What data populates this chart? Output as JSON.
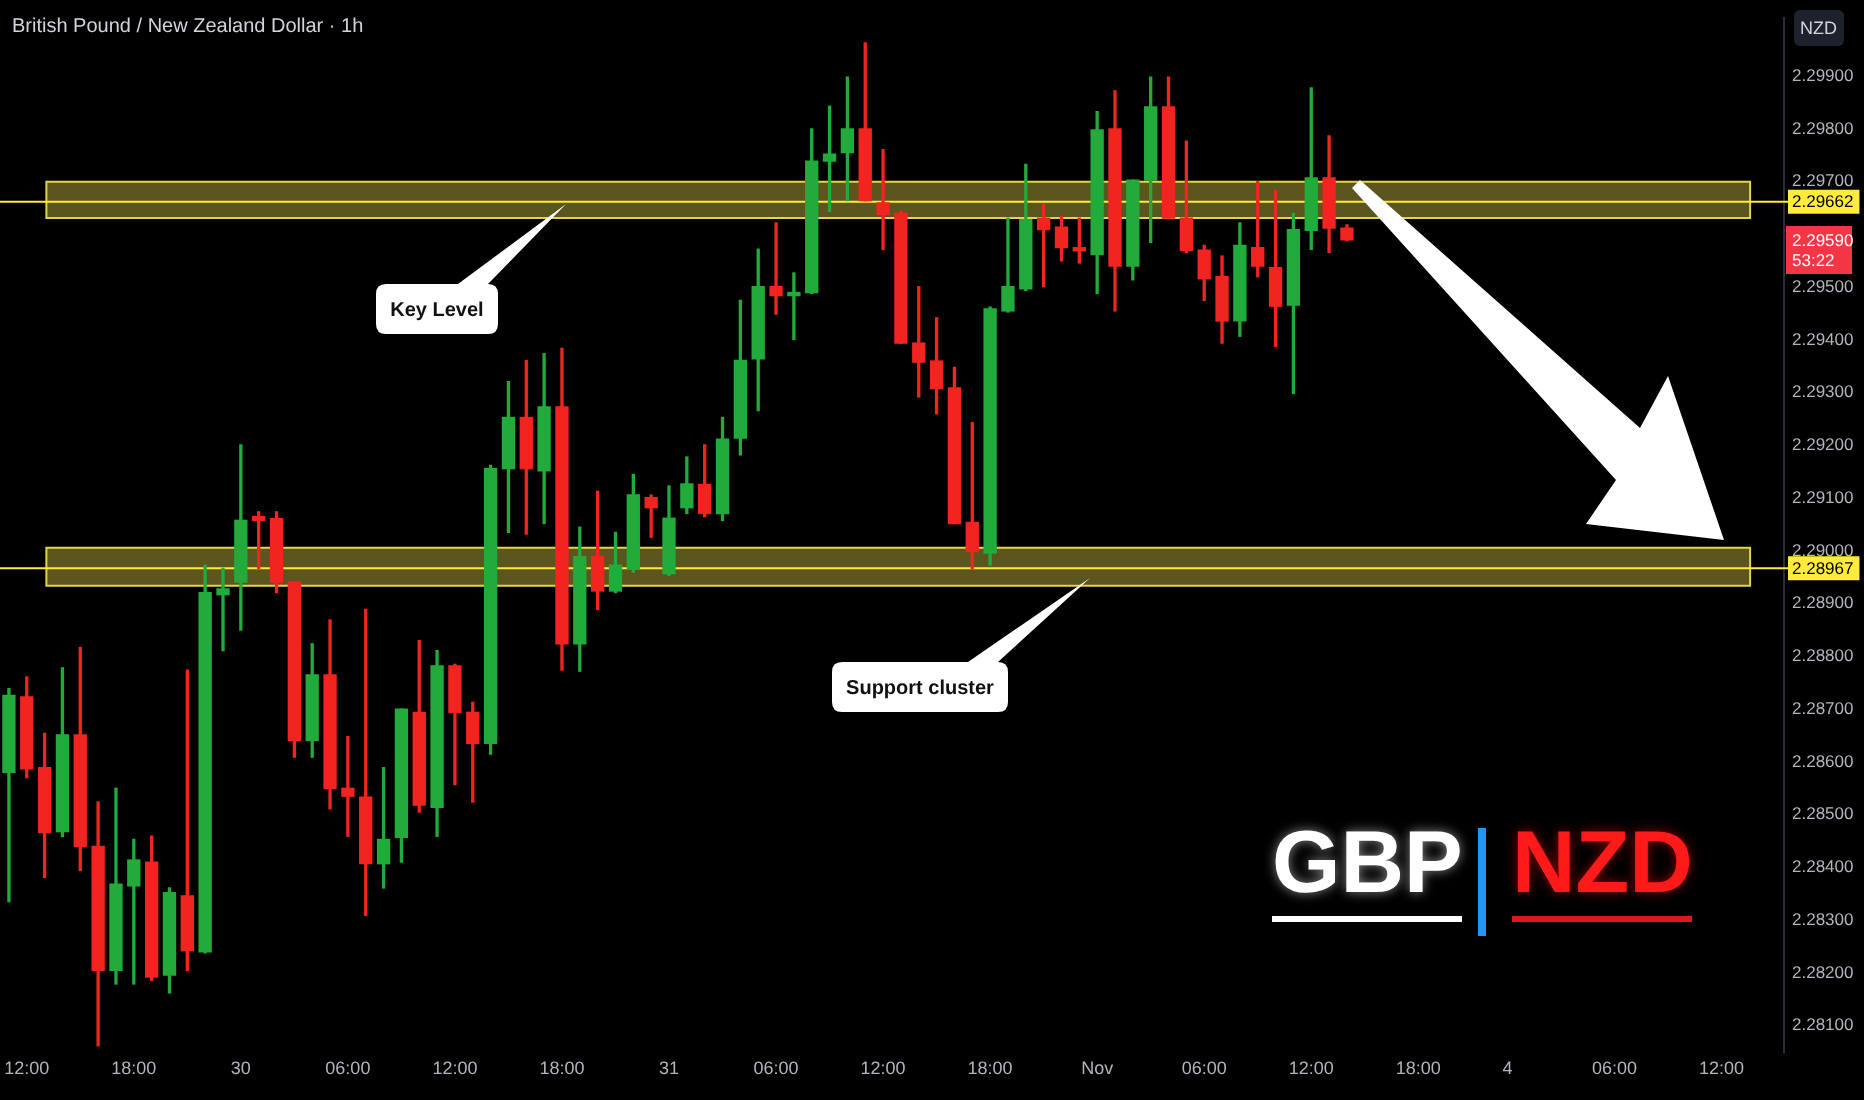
{
  "chart_data": {
    "type": "candlestick",
    "title": "British Pound / New Zealand Dollar · 1h",
    "categories": [
      null,
      "12:00",
      null,
      null,
      null,
      null,
      null,
      "18:00",
      null,
      null,
      null,
      null,
      null,
      "30",
      null,
      null,
      null,
      null,
      null,
      "06:00",
      null,
      null,
      null,
      null,
      null,
      "12:00",
      null,
      null,
      null,
      null,
      null,
      "18:00",
      null,
      null,
      null,
      null,
      null,
      "31",
      null,
      null,
      null,
      null,
      null,
      "06:00",
      null,
      null,
      null,
      null,
      null,
      "12:00",
      null,
      null,
      null,
      null,
      null,
      "18:00",
      null,
      null,
      null,
      null,
      null,
      "Nov",
      null,
      null,
      null,
      null,
      null,
      "06:00",
      null,
      null,
      null,
      null,
      null,
      "12:00",
      null,
      null,
      null,
      null,
      null,
      "18:00",
      null,
      null,
      null,
      null,
      "4",
      null,
      null,
      null,
      null,
      null,
      "06:00",
      null,
      null,
      null,
      null,
      null,
      "12:00",
      null,
      null,
      null
    ],
    "ohlc": [
      [
        2.2858,
        2.28739,
        2.28335,
        2.28726
      ],
      [
        2.28723,
        2.28761,
        2.2857,
        2.28587
      ],
      [
        2.28589,
        2.28654,
        2.28381,
        2.28466
      ],
      [
        2.28468,
        2.28778,
        2.28459,
        2.28651
      ],
      [
        2.28651,
        2.28817,
        2.28394,
        2.2844
      ],
      [
        2.2844,
        2.28524,
        2.28062,
        2.28205
      ],
      [
        2.28205,
        2.2855,
        2.28179,
        2.28368
      ],
      [
        2.28365,
        2.28453,
        2.28179,
        2.28414
      ],
      [
        2.2841,
        2.28459,
        2.28186,
        2.28192
      ],
      [
        2.28196,
        2.28361,
        2.28162,
        2.28352
      ],
      [
        2.28346,
        2.28774,
        2.28205,
        2.28242
      ],
      [
        2.2824,
        2.28973,
        2.28238,
        2.28921
      ],
      [
        2.28917,
        2.28967,
        2.28811,
        2.28928
      ],
      [
        2.28941,
        2.29201,
        2.2885,
        2.29058
      ],
      [
        2.29065,
        2.29074,
        2.28967,
        2.29058
      ],
      [
        2.29061,
        2.29074,
        2.28921,
        2.28941
      ],
      [
        2.28941,
        2.28941,
        2.28609,
        2.28641
      ],
      [
        2.28641,
        2.28824,
        2.28609,
        2.28765
      ],
      [
        2.28765,
        2.28869,
        2.28511,
        2.2855
      ],
      [
        2.2855,
        2.28648,
        2.28459,
        2.28535
      ],
      [
        2.28533,
        2.28889,
        2.28309,
        2.28407
      ],
      [
        2.28407,
        2.28589,
        2.28361,
        2.28453
      ],
      [
        2.28457,
        2.287,
        2.2841,
        2.287
      ],
      [
        2.28694,
        2.2883,
        2.28505,
        2.28518
      ],
      [
        2.28514,
        2.28811,
        2.28459,
        2.28782
      ],
      [
        2.28782,
        2.28785,
        2.28557,
        2.28694
      ],
      [
        2.28694,
        2.28713,
        2.28524,
        2.28635
      ],
      [
        2.28635,
        2.29162,
        2.28615,
        2.29156
      ],
      [
        2.29156,
        2.29321,
        2.29035,
        2.29253
      ],
      [
        2.29253,
        2.29361,
        2.29032,
        2.29156
      ],
      [
        2.29152,
        2.29374,
        2.29052,
        2.29273
      ],
      [
        2.29273,
        2.29384,
        2.28774,
        2.28824
      ],
      [
        2.28824,
        2.29045,
        2.28772,
        2.28989
      ],
      [
        2.28989,
        2.29113,
        2.28889,
        2.28924
      ],
      [
        2.28924,
        2.29035,
        2.28921,
        2.28973
      ],
      [
        2.28967,
        2.29145,
        2.2896,
        2.29106
      ],
      [
        2.29101,
        2.29106,
        2.29026,
        2.29082
      ],
      [
        2.28957,
        2.29123,
        2.28954,
        2.29062
      ],
      [
        2.29082,
        2.29178,
        2.29071,
        2.29127
      ],
      [
        2.29126,
        2.29201,
        2.29065,
        2.29071
      ],
      [
        2.29071,
        2.29253,
        2.29058,
        2.29212
      ],
      [
        2.29214,
        2.29475,
        2.29182,
        2.29361
      ],
      [
        2.29364,
        2.29572,
        2.29266,
        2.29501
      ],
      [
        2.29501,
        2.29622,
        2.29449,
        2.29484
      ],
      [
        2.29484,
        2.29527,
        2.29401,
        2.2949
      ],
      [
        2.2949,
        2.298,
        2.29488,
        2.29739
      ],
      [
        2.29739,
        2.29843,
        2.29644,
        2.29752
      ],
      [
        2.29755,
        2.29898,
        2.29664,
        2.298
      ],
      [
        2.298,
        2.29963,
        2.29664,
        2.29664
      ],
      [
        2.2966,
        2.29761,
        2.29572,
        2.29638
      ],
      [
        2.2964,
        2.29644,
        2.29394,
        2.29394
      ],
      [
        2.29394,
        2.29501,
        2.29292,
        2.29358
      ],
      [
        2.2936,
        2.29442,
        2.2926,
        2.29308
      ],
      [
        2.29309,
        2.29348,
        2.29052,
        2.29052
      ],
      [
        2.29054,
        2.29243,
        2.28967,
        2.28999
      ],
      [
        2.28996,
        2.29462,
        2.28973,
        2.29459
      ],
      [
        2.29455,
        2.29631,
        2.29453,
        2.29501
      ],
      [
        2.29497,
        2.29733,
        2.29494,
        2.29628
      ],
      [
        2.29631,
        2.29657,
        2.29501,
        2.29609
      ],
      [
        2.29614,
        2.29634,
        2.2955,
        2.29575
      ],
      [
        2.29575,
        2.29631,
        2.29546,
        2.29569
      ],
      [
        2.29562,
        2.29833,
        2.29488,
        2.29798
      ],
      [
        2.298,
        2.29872,
        2.29455,
        2.2954
      ],
      [
        2.2954,
        2.29703,
        2.29514,
        2.29703
      ],
      [
        2.29703,
        2.29898,
        2.29585,
        2.29842
      ],
      [
        2.29842,
        2.29898,
        2.29631,
        2.29631
      ],
      [
        2.29631,
        2.29777,
        2.29566,
        2.2957
      ],
      [
        2.2957,
        2.29579,
        2.29475,
        2.29516
      ],
      [
        2.2952,
        2.29559,
        2.29394,
        2.29436
      ],
      [
        2.29436,
        2.29622,
        2.29407,
        2.29579
      ],
      [
        2.29575,
        2.297,
        2.2952,
        2.2954
      ],
      [
        2.29537,
        2.29683,
        2.29388,
        2.29464
      ],
      [
        2.29466,
        2.2964,
        2.29299,
        2.29609
      ],
      [
        2.29608,
        2.29878,
        2.29572,
        2.29707
      ],
      [
        2.29707,
        2.29787,
        2.29566,
        2.29612
      ],
      [
        2.29612,
        2.29618,
        2.29589,
        2.2959
      ],
      null,
      null,
      null,
      null,
      null,
      null,
      null,
      null,
      null,
      null,
      null,
      null,
      null,
      null,
      null,
      null,
      null,
      null,
      null,
      null,
      null,
      null,
      null,
      null
    ],
    "colors": [
      "#22ab3a",
      "#f2241f",
      "#f2241f",
      "#22ab3a",
      "#f2241f",
      "#f2241f",
      "#22ab3a",
      "#22ab3a",
      "#f2241f",
      "#22ab3a",
      "#f2241f",
      "#22ab3a",
      "#22ab3a",
      "#22ab3a",
      "#f2241f",
      "#f2241f",
      "#f2241f",
      "#22ab3a",
      "#f2241f",
      "#f2241f",
      "#f2241f",
      "#22ab3a",
      "#22ab3a",
      "#f2241f",
      "#22ab3a",
      "#f2241f",
      "#f2241f",
      "#22ab3a",
      "#22ab3a",
      "#f2241f",
      "#22ab3a",
      "#f2241f",
      "#22ab3a",
      "#f2241f",
      "#22ab3a",
      "#22ab3a",
      "#f2241f",
      "#22ab3a",
      "#22ab3a",
      "#f2241f",
      "#22ab3a",
      "#22ab3a",
      "#22ab3a",
      "#f2241f",
      "#22ab3a",
      "#22ab3a",
      "#22ab3a",
      "#22ab3a",
      "#f2241f",
      "#f2241f",
      "#f2241f",
      "#f2241f",
      "#f2241f",
      "#f2241f",
      "#f2241f",
      "#22ab3a",
      "#22ab3a",
      "#22ab3a",
      "#f2241f",
      "#f2241f",
      "#f2241f",
      "#22ab3a",
      "#f2241f",
      "#22ab3a",
      "#22ab3a",
      "#f2241f",
      "#f2241f",
      "#f2241f",
      "#f2241f",
      "#22ab3a",
      "#f2241f",
      "#f2241f",
      "#22ab3a",
      "#22ab3a",
      "#f2241f",
      "#f2241f",
      null,
      null,
      null,
      null,
      null,
      null,
      null,
      null,
      null,
      null,
      null,
      null,
      null,
      null,
      null,
      null,
      null,
      null,
      null,
      null,
      null,
      null,
      null,
      null
    ],
    "ylim": [
      2.2805,
      2.3001
    ],
    "yticks": [
      {
        "value": 2.281,
        "label": "2.28100"
      },
      {
        "value": 2.282,
        "label": "2.28200"
      },
      {
        "value": 2.283,
        "label": "2.28300"
      },
      {
        "value": 2.284,
        "label": "2.28400"
      },
      {
        "value": 2.285,
        "label": "2.28500"
      },
      {
        "value": 2.286,
        "label": "2.28600"
      },
      {
        "value": 2.287,
        "label": "2.28700"
      },
      {
        "value": 2.288,
        "label": "2.28800"
      },
      {
        "value": 2.289,
        "label": "2.28900"
      },
      {
        "value": 2.29,
        "label": "2.29000"
      },
      {
        "value": 2.291,
        "label": "2.29100"
      },
      {
        "value": 2.292,
        "label": "2.29200"
      },
      {
        "value": 2.293,
        "label": "2.29300"
      },
      {
        "value": 2.294,
        "label": "2.29400"
      },
      {
        "value": 2.295,
        "label": "2.29500"
      },
      {
        "value": 2.297,
        "label": "2.29700"
      },
      {
        "value": 2.298,
        "label": "2.29800"
      },
      {
        "value": 2.299,
        "label": "2.29900"
      }
    ],
    "bands": [
      {
        "axis": "y",
        "from": 2.29631,
        "to": 2.297,
        "color": "#e3d44a"
      },
      {
        "axis": "y",
        "from": 2.28934,
        "to": 2.29006,
        "color": "#e3d44a"
      }
    ],
    "ref_lines": [
      {
        "axis": "y",
        "value": 2.29662,
        "label": "2.29662",
        "color": "#ffeb3b"
      },
      {
        "axis": "y",
        "value": 2.28967,
        "label": "2.28967",
        "color": "#ffeb3b"
      }
    ],
    "annotations": [
      "NZD",
      "2.29590",
      "53:22",
      "GBP",
      "NZD",
      "Key Level",
      "Support cluster"
    ]
  }
}
